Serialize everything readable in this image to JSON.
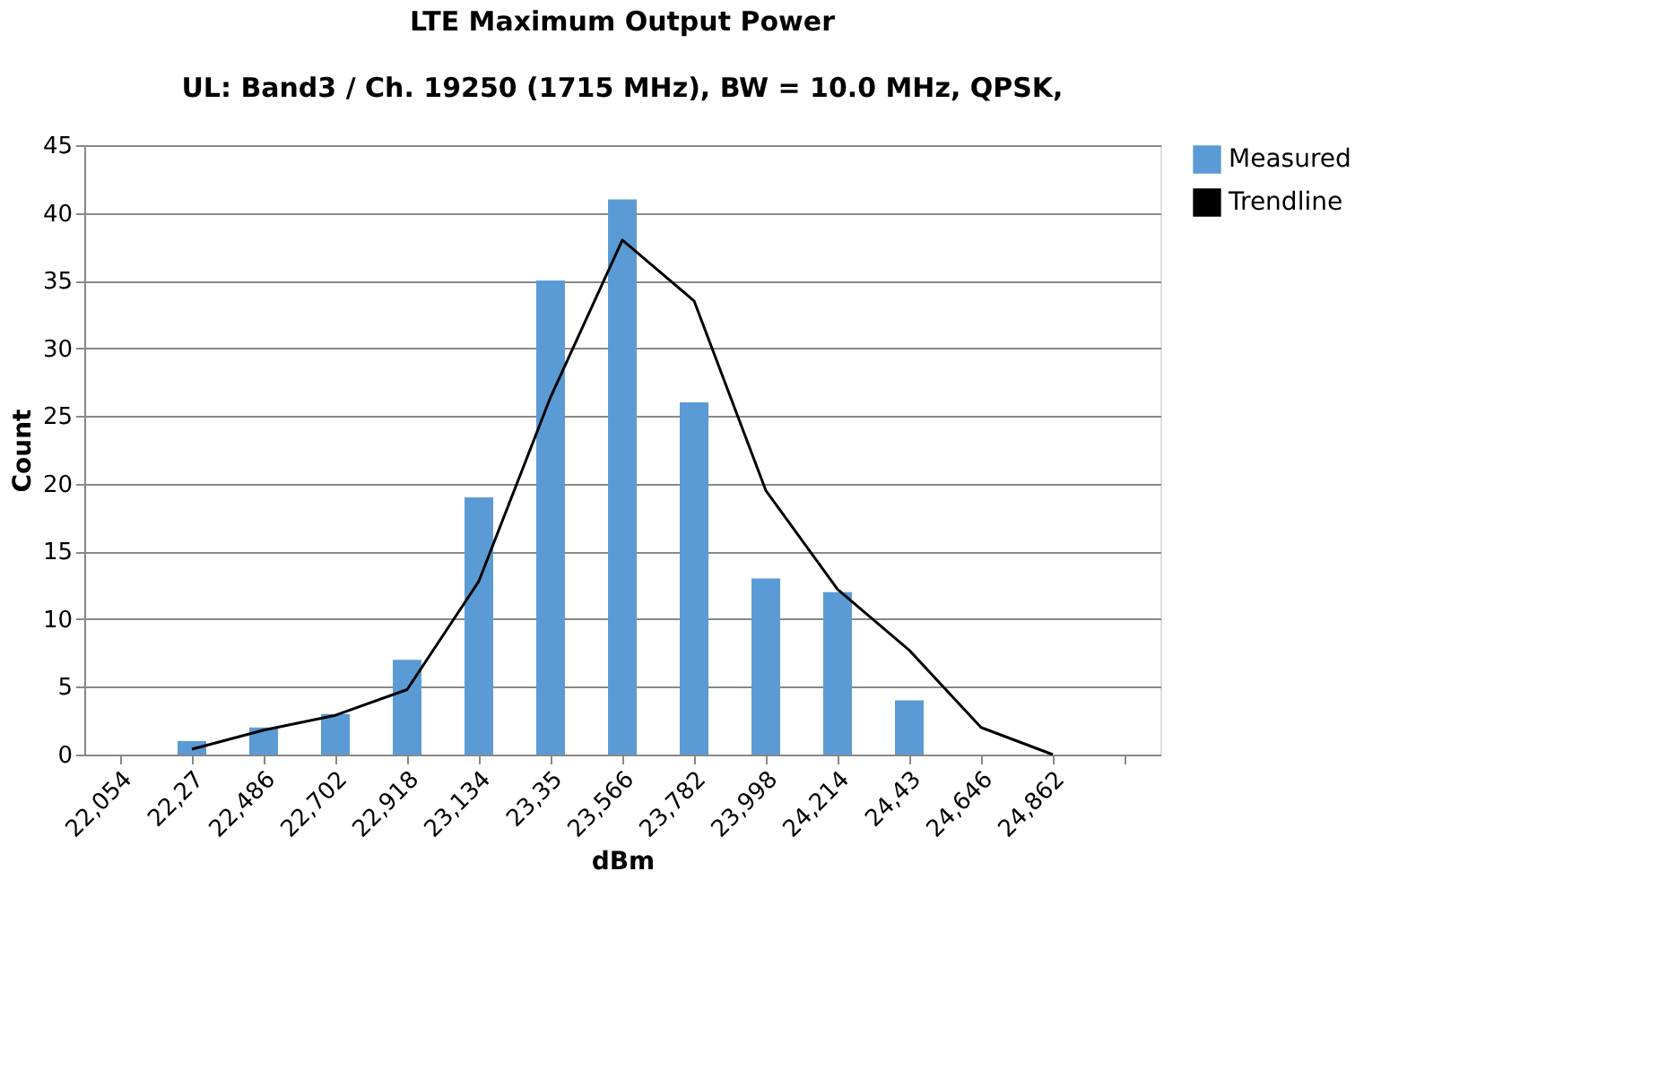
{
  "chart_data": {
    "type": "bar",
    "title": "LTE Maximum Output Power",
    "subtitle": "UL: Band3 / Ch. 19250 (1715 MHz), BW = 10.0 MHz, QPSK,",
    "xlabel": "dBm",
    "ylabel": "Count",
    "categories": [
      "22,054",
      "22,27",
      "22,486",
      "22,702",
      "22,918",
      "23,134",
      "23,35",
      "23,566",
      "23,782",
      "23,998",
      "24,214",
      "24,43",
      "24,646",
      "24,862",
      null
    ],
    "series": [
      {
        "name": "Measured",
        "color": "#5b9bd5",
        "values": [
          0,
          1,
          2,
          3,
          7,
          19,
          35,
          41,
          26,
          13,
          12,
          4,
          0,
          0,
          null
        ]
      },
      {
        "name": "Trendline",
        "type": "line",
        "color": "#000000",
        "values": [
          null,
          0.4,
          1.8,
          2.9,
          4.8,
          12.8,
          26.4,
          38,
          33.5,
          19.5,
          12.2,
          7.7,
          2,
          0,
          null
        ]
      }
    ],
    "ylim": [
      0,
      45
    ],
    "yticks": [
      0,
      5,
      10,
      15,
      20,
      25,
      30,
      35,
      40,
      45
    ],
    "grid": "y",
    "legend": "right"
  }
}
